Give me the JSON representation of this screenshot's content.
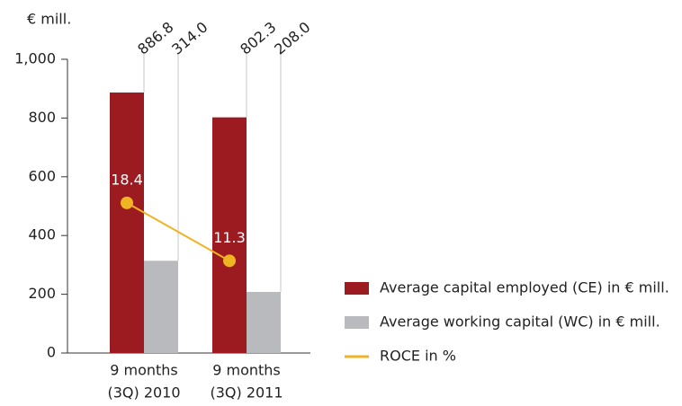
{
  "chart_data": {
    "type": "bar",
    "y_unit_label": "€ mill.",
    "categories": [
      [
        "9 months",
        "(3Q) 2010"
      ],
      [
        "9 months",
        "(3Q) 2011"
      ]
    ],
    "series": [
      {
        "name": "Average capital employed (CE) in € mill.",
        "color": "#9b1b20",
        "values": [
          886.8,
          802.3
        ],
        "value_labels": [
          "886.8",
          "802.3"
        ]
      },
      {
        "name": "Average working capital (WC) in € mill.",
        "color": "#b9babd",
        "values": [
          314.0,
          208.0
        ],
        "value_labels": [
          "314.0",
          "208.0"
        ]
      },
      {
        "name": "ROCE in %",
        "color": "#f0b323",
        "type": "line",
        "axis": "y2",
        "values": [
          18.4,
          11.3
        ]
      }
    ],
    "ylim": [
      0,
      1000
    ],
    "yticks": [
      0,
      200,
      400,
      600,
      800,
      {
        "value": 1000,
        "label": "1,000"
      }
    ],
    "y2lim": [
      0,
      36
    ]
  }
}
